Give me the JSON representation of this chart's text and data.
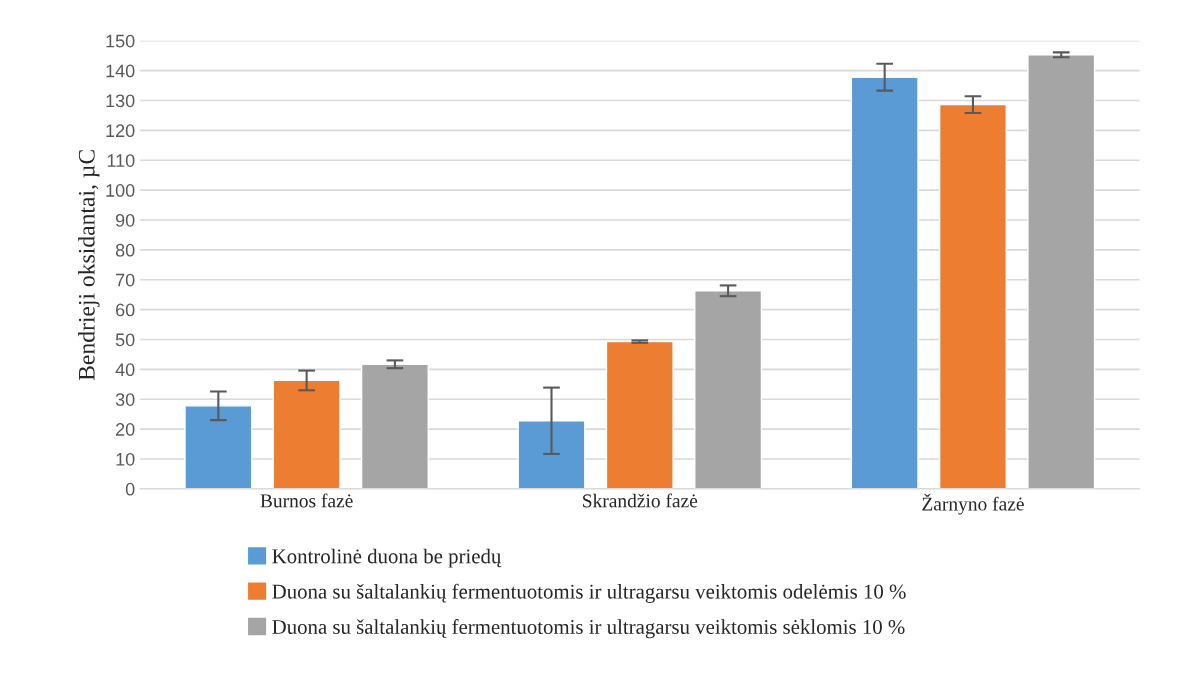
{
  "chart_data": {
    "type": "bar",
    "ylabel": "Bendrieji oksidantai, µC",
    "categories": [
      "Burnos fazė",
      "Skrandžio fazė",
      "Žarnyno fazė"
    ],
    "series": [
      {
        "name": "Kontrolinė duona be priedų",
        "color": "#5b9bd5",
        "values": [
          27.8,
          22.8,
          137.8
        ],
        "errors": [
          4.8,
          11.1,
          4.5
        ]
      },
      {
        "name": "Duona su šaltalankių fermentuotomis ir ultragarsu veiktomis odelėmis 10 %",
        "color": "#ed7d31",
        "values": [
          36.3,
          49.3,
          128.6
        ],
        "errors": [
          3.3,
          0.4,
          2.8
        ]
      },
      {
        "name": "Duona su šaltalankių fermentuotomis ir ultragarsu veiktomis sėklomis 10 %",
        "color": "#a5a5a5",
        "values": [
          41.7,
          66.3,
          145.3
        ],
        "errors": [
          1.3,
          1.8,
          0.8
        ]
      }
    ],
    "ylim": [
      0,
      150
    ],
    "yticks": [
      0,
      10,
      20,
      30,
      40,
      50,
      60,
      70,
      80,
      90,
      100,
      110,
      120,
      130,
      140,
      150
    ],
    "grid": "y",
    "legend": "bottom"
  }
}
